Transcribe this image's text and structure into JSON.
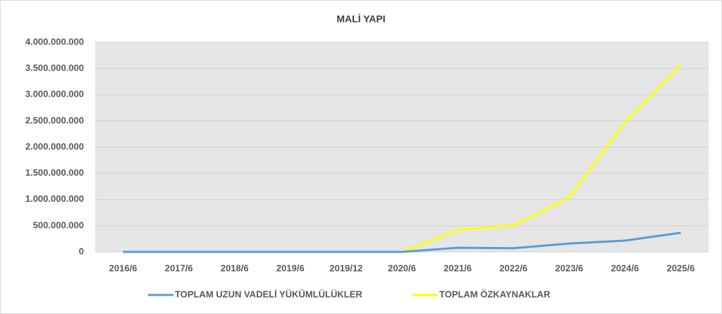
{
  "chart_data": {
    "type": "line",
    "title": "MALİ YAPI",
    "categories": [
      "2016/6",
      "2017/6",
      "2018/6",
      "2019/6",
      "2019/12",
      "2020/6",
      "2021/6",
      "2022/6",
      "2023/6",
      "2024/6",
      "2025/6"
    ],
    "series": [
      {
        "name": "TOPLAM UZUN VADELİ YÜKÜMLÜLÜKLER",
        "color": "#5b9bd5",
        "values": [
          0,
          0,
          0,
          0,
          0,
          0,
          80000000,
          70000000,
          160000000,
          215000000,
          365000000
        ]
      },
      {
        "name": "TOPLAM ÖZKAYNAKLAR",
        "color": "#ffff00",
        "values": [
          0,
          0,
          0,
          0,
          0,
          0,
          420000000,
          510000000,
          1040000000,
          2480000000,
          3570000000
        ]
      }
    ],
    "ylim": [
      0,
      4000000000
    ],
    "yticks": [
      0,
      {
        "value": 500000000,
        "label": "500.000.000"
      },
      {
        "value": 1000000000,
        "label": "1.000.000.000"
      },
      {
        "value": 1500000000,
        "label": "1.500.000.000"
      },
      {
        "value": 2000000000,
        "label": "2.000.000.000"
      },
      {
        "value": 2500000000,
        "label": "2.500.000.000"
      },
      {
        "value": 3000000000,
        "label": "3.000.000.000"
      },
      {
        "value": 3500000000,
        "label": "3.500.000.000"
      },
      {
        "value": 4000000000,
        "label": "4.000.000.000"
      }
    ],
    "grid": true,
    "legend": "bottom"
  }
}
